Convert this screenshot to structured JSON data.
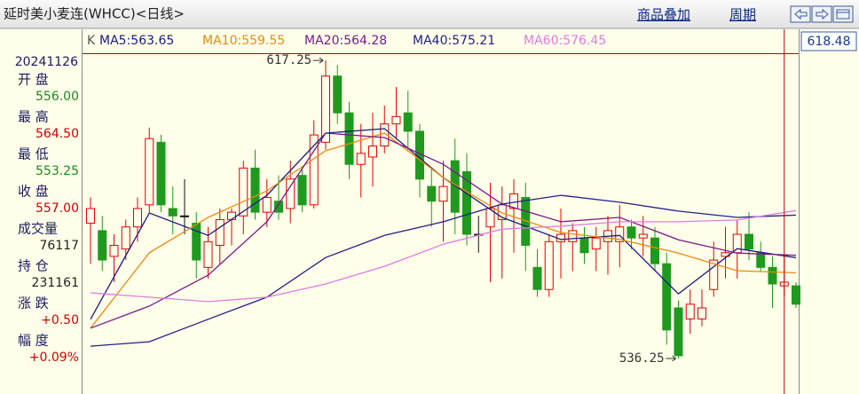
{
  "header": {
    "title": "延时美小麦连(WHCC)<日线>",
    "links": [
      "商品叠加",
      "周期"
    ]
  },
  "info_panel": {
    "date": "20241126",
    "items": [
      {
        "label": "开 盘",
        "value": "556.00"
      },
      {
        "label": "最 高",
        "value": "564.50"
      },
      {
        "label": "最 低",
        "value": "553.25"
      },
      {
        "label": "收 盘",
        "value": "557.00"
      },
      {
        "label": "成交量",
        "value": "76117"
      },
      {
        "label": "持 仓",
        "value": "231161"
      },
      {
        "label": "涨 跌",
        "value": "+0.50"
      },
      {
        "label": "幅 度",
        "value": "+0.09%"
      }
    ]
  },
  "chart_data": {
    "type": "candlestick",
    "legend_prefix": "K",
    "cursor_price": 618.48,
    "ylim": [
      526.6,
      619.2
    ],
    "cursor_index": 59,
    "up_color": "#e00000",
    "down_color": "#1f9a1f",
    "open": [
      573,
      571,
      564,
      566,
      572,
      578,
      595,
      577,
      575,
      573,
      561,
      567,
      574,
      575,
      588,
      576,
      579,
      577,
      586,
      578,
      595,
      613,
      603,
      589,
      591,
      594,
      600,
      603,
      598,
      583,
      579,
      590,
      587,
      570,
      572,
      574,
      577,
      580,
      561,
      555,
      568,
      568,
      569,
      566,
      568,
      568,
      572,
      569,
      569,
      562,
      550,
      547,
      547,
      555,
      564,
      565,
      570,
      565,
      561,
      556,
      556
    ],
    "high": [
      580,
      575,
      570,
      574,
      580,
      599,
      597,
      583,
      585,
      576,
      572,
      577,
      577,
      590,
      593,
      585,
      586,
      590,
      588,
      601,
      617.25,
      616,
      606,
      600,
      603,
      605,
      610,
      609,
      600,
      588,
      590,
      596,
      592,
      575,
      584,
      583,
      585,
      584,
      566,
      570,
      577,
      573,
      572,
      572,
      575,
      578,
      574,
      575,
      572,
      565,
      552,
      555,
      555,
      568,
      572,
      574,
      576,
      568,
      564,
      564.5,
      557
    ],
    "low": [
      562,
      560,
      557,
      563,
      568,
      576,
      576,
      570,
      570,
      558,
      558,
      562,
      567,
      570,
      574,
      572,
      574,
      573,
      576,
      577,
      593,
      600,
      585,
      580,
      583,
      592,
      596,
      593,
      580,
      572,
      568,
      570,
      567,
      565,
      557,
      558,
      565,
      560,
      553,
      553,
      558,
      560,
      562,
      560,
      559,
      561,
      566,
      564,
      560,
      540,
      536.25,
      543,
      545,
      553,
      558,
      558,
      563,
      560,
      550,
      553.25,
      550
    ],
    "close": [
      577,
      563,
      567,
      572,
      577,
      596,
      578,
      575,
      575,
      563,
      568,
      574,
      576,
      588,
      576,
      580,
      576,
      585,
      578,
      597,
      613,
      603,
      589,
      592,
      594,
      600,
      602,
      598,
      585,
      579,
      583,
      576,
      570,
      570,
      577,
      578,
      581,
      567,
      555,
      568,
      570,
      571,
      565,
      569,
      571,
      572,
      569,
      570,
      562,
      544,
      537,
      551,
      550,
      563,
      565,
      570,
      566,
      561,
      556.5,
      557,
      551
    ],
    "ma_index": [
      0,
      5,
      10,
      15,
      20,
      25,
      30,
      35,
      40,
      45,
      50,
      55,
      60
    ],
    "lines": [
      {
        "name": "MA5:563.65",
        "color": "#1a1a80",
        "values": [
          546.9,
          575.8,
          569.7,
          580.6,
          597.5,
          598.7,
          585.4,
          574.6,
          568.6,
          569.7,
          553.8,
          566.1,
          563.65
        ]
      },
      {
        "name": "MA10:559.55",
        "color": "#e88a10",
        "values": [
          544.5,
          565.0,
          574.6,
          581.8,
          592.7,
          597.5,
          585.4,
          575.8,
          570.5,
          568.6,
          564.9,
          560.1,
          559.55
        ]
      },
      {
        "name": "MA20:564.28",
        "color": "#7a1a8a",
        "values": [
          544.5,
          550.5,
          558.9,
          573.4,
          597.5,
          596.3,
          589.0,
          578.2,
          573.4,
          574.6,
          568.5,
          564.9,
          564.28
        ]
      },
      {
        "name": "MA40:575.21",
        "color": "#20208a",
        "values": [
          539.6,
          540.8,
          546.9,
          552.9,
          563.7,
          569.7,
          573.4,
          578.2,
          580.6,
          578.7,
          576.3,
          574.6,
          575.21
        ]
      },
      {
        "name": "MA60:576.45",
        "color": "#e07ae0",
        "values": [
          554.1,
          552.9,
          551.7,
          552.9,
          556.5,
          561.3,
          567.3,
          571.4,
          572.2,
          573.4,
          573.4,
          573.9,
          576.45
        ]
      }
    ]
  }
}
